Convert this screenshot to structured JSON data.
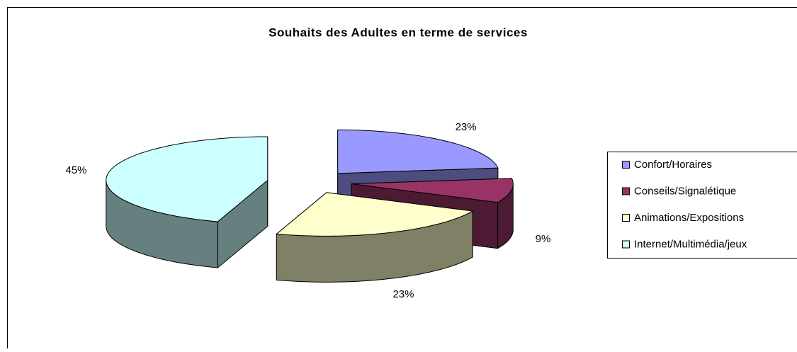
{
  "chart_data": {
    "type": "pie3d",
    "title": "Souhaits des Adultes en terme de services",
    "categories": [
      "Confort/Horaires",
      "Conseils/Signalétique",
      "Animations/Expositions",
      "Internet/Multimédia/jeux"
    ],
    "values": [
      23,
      9,
      23,
      45
    ],
    "value_labels": [
      "23%",
      "9%",
      "23%",
      "45%"
    ],
    "colors": [
      "#9999ff",
      "#993366",
      "#ffffcc",
      "#ccffff"
    ],
    "legend": "right"
  }
}
